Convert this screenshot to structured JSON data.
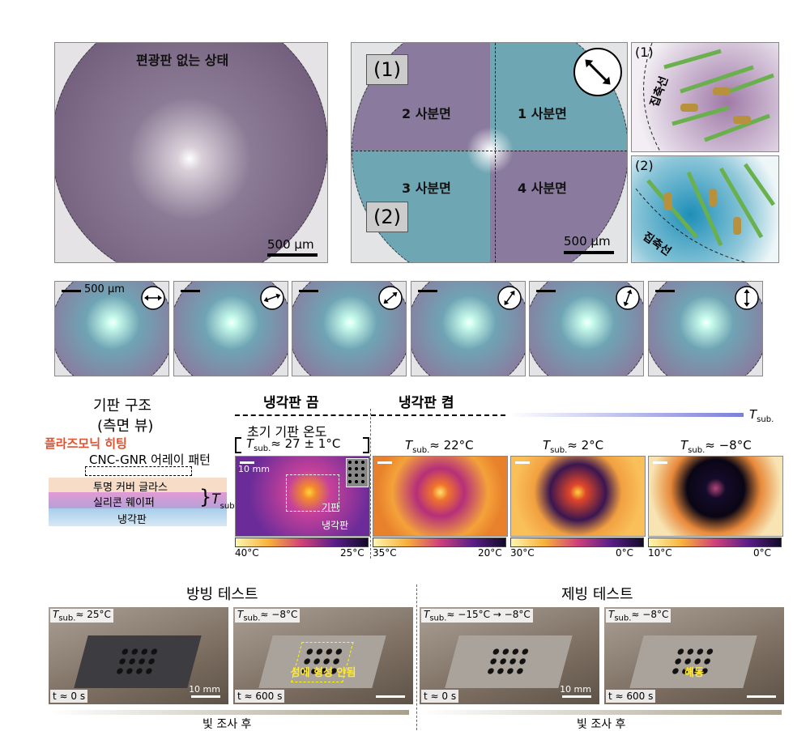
{
  "t_symbol": "T",
  "t_sub": "sub.",
  "microscopy": {
    "no_polarizer": "편광판 없는 상태",
    "scale_bar": "500 µm",
    "inset_1": "(1)",
    "inset_2": "(2)",
    "quadrants": [
      "2 사분면",
      "1 사분면",
      "3 사분면",
      "4 사분면"
    ],
    "schematic_1": "(1)",
    "schematic_2": "(2)",
    "director": "집축선"
  },
  "rotation_series": {
    "scale_bar": "500 µm"
  },
  "structure": {
    "title": "기판 구조",
    "view": "(측면 뷰)",
    "heating": "플라즈모닉 히팅",
    "array": "CNC-GNR 어레이 패턴",
    "layers": [
      "투명 커버 글라스",
      "실리콘 웨이퍼",
      "냉각판"
    ]
  },
  "thermal": {
    "cooling_off": "냉각판 끔",
    "cooling_on": "냉각판 켬",
    "initial": "초기 기판 온도",
    "scale_bar": "10 mm",
    "substrate": "기판",
    "cooling_plate": "냉각판",
    "panels": [
      {
        "temp": "≈ 27 ± 1°C",
        "cmax": "40°C",
        "cmin": "25°C"
      },
      {
        "temp": "≈ 22°C",
        "cmax": "35°C",
        "cmin": "20°C"
      },
      {
        "temp": "≈ 2°C",
        "cmax": "30°C",
        "cmin": "0°C"
      },
      {
        "temp": "≈ −8°C",
        "cmax": "10°C",
        "cmin": "0°C"
      }
    ]
  },
  "icing": {
    "anti_icing": "방빙 테스트",
    "de_icing": "제빙 테스트",
    "after_light": "빛 조사 후",
    "scale_bar": "10 mm",
    "photos": [
      {
        "temp": "≈ 25°C",
        "time": "t ≈ 0 s"
      },
      {
        "temp": "≈ −8°C",
        "time": "t ≈ 600 s",
        "note": "성에 형성 안됨"
      },
      {
        "temp": "≈ −15°C → −8°C",
        "time": "t ≈ 0 s"
      },
      {
        "temp": "≈ −8°C",
        "time": "t ≈ 600 s",
        "note": "해동"
      }
    ]
  }
}
